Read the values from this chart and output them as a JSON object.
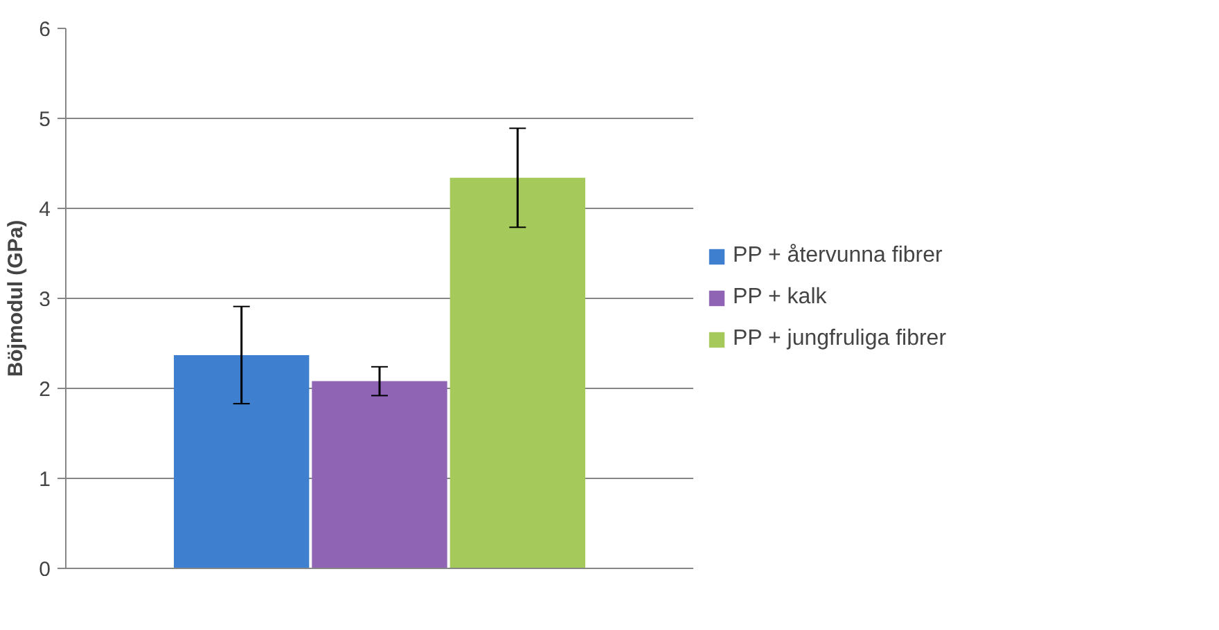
{
  "chart_data": {
    "type": "bar",
    "ylabel": "Böjmodul (GPa)",
    "categories": [
      null
    ],
    "series": [
      {
        "name": "PP + återvunna fibrer",
        "color": "#3f7fcf",
        "values": [
          2.37
        ],
        "errors": [
          0.54
        ]
      },
      {
        "name": "PP + kalk",
        "color": "#9064b4",
        "values": [
          2.08
        ],
        "errors": [
          0.16
        ]
      },
      {
        "name": "PP + jungfruliga fibrer",
        "color": "#a5c95a",
        "values": [
          4.34
        ],
        "errors": [
          0.55
        ]
      }
    ],
    "ylim": [
      0,
      6
    ],
    "yticks": [
      0,
      1,
      2,
      3,
      4,
      5,
      6
    ],
    "grid": "y",
    "legend": "right",
    "tick_labels": "y"
  }
}
